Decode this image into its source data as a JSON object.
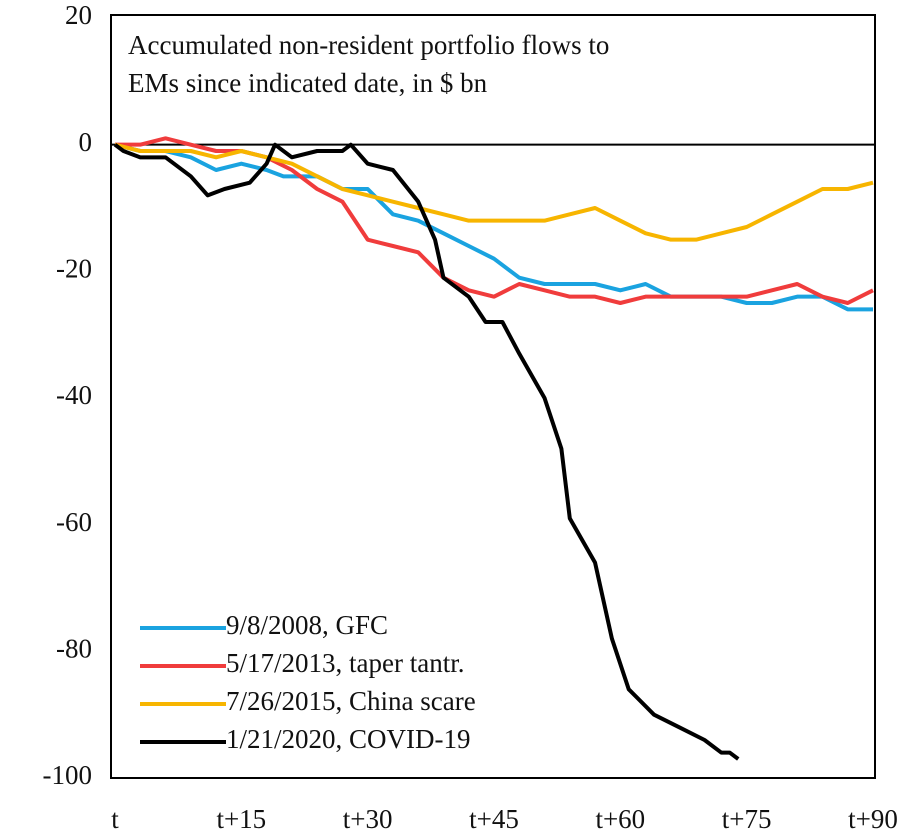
{
  "chart_data": {
    "type": "line",
    "title_lines": [
      "Accumulated non-resident portfolio flows to",
      "EMs since indicated date, in $ bn"
    ],
    "xlim": [
      0,
      90
    ],
    "xticks": [
      {
        "value": 0,
        "label": "t"
      },
      {
        "value": 15,
        "label": "t+15"
      },
      {
        "value": 30,
        "label": "t+30"
      },
      {
        "value": 45,
        "label": "t+45"
      },
      {
        "value": 60,
        "label": "t+60"
      },
      {
        "value": 75,
        "label": "t+75"
      },
      {
        "value": 90,
        "label": "t+90"
      }
    ],
    "ylim": [
      -100,
      20
    ],
    "yticks": [
      -100,
      -80,
      -60,
      -40,
      -20,
      0,
      20
    ],
    "legend": "lower left",
    "series": [
      {
        "name": "9/8/2008, GFC",
        "color": "#1aa3e0",
        "x": [
          0,
          3,
          6,
          9,
          12,
          15,
          18,
          20,
          24,
          27,
          30,
          33,
          36,
          39,
          42,
          45,
          48,
          51,
          54,
          57,
          60,
          63,
          66,
          69,
          72,
          75,
          78,
          81,
          84,
          87,
          90
        ],
        "values": [
          0,
          -1,
          -1,
          -2,
          -4,
          -3,
          -4,
          -5,
          -5,
          -7,
          -7,
          -11,
          -12,
          -14,
          -16,
          -18,
          -21,
          -22,
          -22,
          -22,
          -23,
          -22,
          -24,
          -24,
          -24,
          -25,
          -25,
          -24,
          -24,
          -26,
          -26
        ]
      },
      {
        "name": "5/17/2013, taper tantr.",
        "color": "#f03c3c",
        "x": [
          0,
          3,
          6,
          9,
          12,
          15,
          18,
          21,
          24,
          27,
          30,
          33,
          36,
          39,
          42,
          45,
          48,
          51,
          54,
          57,
          60,
          63,
          66,
          69,
          72,
          75,
          78,
          81,
          84,
          87,
          90
        ],
        "values": [
          0,
          0,
          1,
          0,
          -1,
          -1,
          -2,
          -4,
          -7,
          -9,
          -15,
          -16,
          -17,
          -21,
          -23,
          -24,
          -22,
          -23,
          -24,
          -24,
          -25,
          -24,
          -24,
          -24,
          -24,
          -24,
          -23,
          -22,
          -24,
          -25,
          -23
        ]
      },
      {
        "name": "7/26/2015, China scare",
        "color": "#f7b500",
        "x": [
          0,
          3,
          6,
          9,
          12,
          15,
          18,
          21,
          24,
          27,
          30,
          33,
          36,
          39,
          42,
          45,
          48,
          51,
          54,
          57,
          60,
          63,
          66,
          69,
          72,
          75,
          78,
          81,
          84,
          87,
          90
        ],
        "values": [
          0,
          -1,
          -1,
          -1,
          -2,
          -1,
          -2,
          -3,
          -5,
          -7,
          -8,
          -9,
          -10,
          -11,
          -12,
          -12,
          -12,
          -12,
          -11,
          -10,
          -12,
          -14,
          -15,
          -15,
          -14,
          -13,
          -11,
          -9,
          -7,
          -7,
          -6
        ]
      },
      {
        "name": "1/21/2020, COVID-19",
        "color": "#000000",
        "x": [
          0,
          1,
          3,
          6,
          9,
          11,
          13,
          16,
          18,
          19,
          21,
          24,
          27,
          28,
          30,
          33,
          36,
          38,
          39,
          42,
          44,
          46,
          48,
          51,
          53,
          54,
          57,
          59,
          61,
          64,
          67,
          70,
          72,
          73,
          74
        ],
        "values": [
          0,
          -1,
          -2,
          -2,
          -5,
          -8,
          -7,
          -6,
          -3,
          0,
          -2,
          -1,
          -1,
          0,
          -3,
          -4,
          -9,
          -15,
          -21,
          -24,
          -28,
          -28,
          -33,
          -40,
          -48,
          -59,
          -66,
          -78,
          -86,
          -90,
          -92,
          -94,
          -96,
          -96,
          -97
        ]
      }
    ]
  }
}
